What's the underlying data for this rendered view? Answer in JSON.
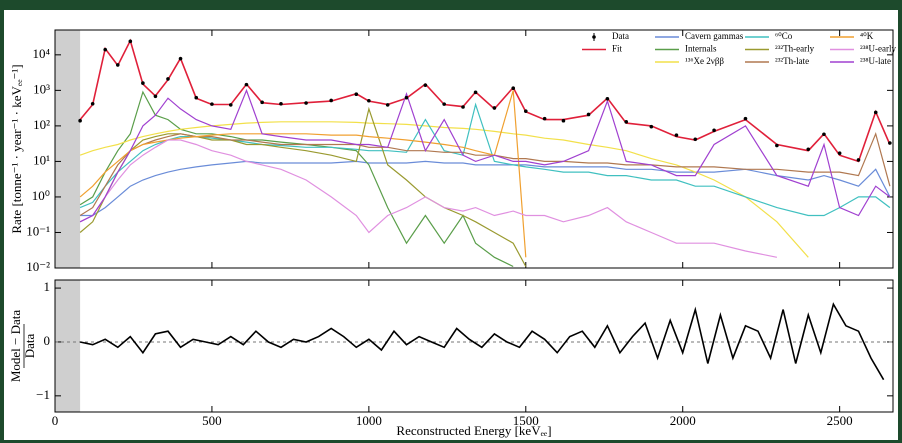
{
  "chart_data": [
    {
      "type": "line",
      "yscale": "log",
      "ylabel": "Rate [tonne⁻¹ · year⁻¹ · keVₑₑ⁻¹]",
      "xlim": [
        0,
        2670
      ],
      "ylim": [
        0.01,
        50000
      ],
      "excluded_region": [
        0,
        80
      ],
      "xticks": [
        0,
        500,
        1000,
        1500,
        2000,
        2500
      ],
      "yticks": [
        {
          "value": 0.01,
          "label": "10⁻²"
        },
        {
          "value": 0.1,
          "label": "10⁻¹"
        },
        {
          "value": 1,
          "label": "10⁰"
        },
        {
          "value": 10,
          "label": "10¹"
        },
        {
          "value": 100,
          "label": "10²"
        },
        {
          "value": 1000,
          "label": "10³"
        },
        {
          "value": 10000,
          "label": "10⁴"
        }
      ],
      "legend": "upper right",
      "x": [
        80,
        120,
        160,
        200,
        240,
        280,
        320,
        360,
        400,
        450,
        500,
        560,
        610,
        660,
        720,
        800,
        880,
        960,
        1000,
        1060,
        1120,
        1180,
        1240,
        1300,
        1340,
        1400,
        1460,
        1500,
        1560,
        1620,
        1700,
        1760,
        1820,
        1900,
        1980,
        2040,
        2100,
        2200,
        2300,
        2400,
        2450,
        2500,
        2560,
        2615,
        2660
      ],
      "series": [
        {
          "name": "Data",
          "color": "#000000",
          "values": [
            140,
            420,
            14000,
            5200,
            24000,
            1600,
            680,
            2100,
            7800,
            620,
            410,
            390,
            1450,
            460,
            420,
            440,
            520,
            780,
            510,
            390,
            620,
            1400,
            410,
            340,
            880,
            320,
            1150,
            260,
            160,
            140,
            210,
            580,
            130,
            95,
            55,
            42,
            75,
            160,
            28,
            22,
            58,
            17,
            11,
            240,
            33
          ]
        },
        {
          "name": "Fit",
          "color": "#e0203a",
          "values": [
            150,
            400,
            15000,
            5000,
            25000,
            1500,
            700,
            2000,
            8000,
            600,
            400,
            400,
            1500,
            450,
            400,
            450,
            500,
            800,
            500,
            400,
            600,
            1500,
            400,
            350,
            900,
            300,
            1200,
            250,
            150,
            150,
            200,
            600,
            120,
            100,
            50,
            40,
            70,
            150,
            30,
            20,
            60,
            15,
            10,
            250,
            30
          ]
        },
        {
          "name": "Cavern gammas",
          "color": "#6a8cd8",
          "values": [
            0.3,
            0.3,
            0.5,
            1,
            2,
            3,
            4,
            5,
            6,
            7,
            8,
            9,
            10,
            9,
            9,
            9,
            9,
            10,
            9,
            9,
            9,
            10,
            9,
            9,
            8,
            8,
            8,
            8,
            7,
            7,
            7,
            7,
            6,
            6,
            5,
            5,
            5,
            6,
            4,
            3,
            4,
            3,
            2,
            6,
            1
          ]
        },
        {
          "name": "Internals",
          "color": "#5a9e4a",
          "values": [
            0.6,
            1,
            5,
            20,
            60,
            900,
            200,
            150,
            80,
            60,
            60,
            50,
            40,
            40,
            35,
            30,
            25,
            20,
            8,
            0.5,
            0.05,
            0.3,
            0.05,
            0.3,
            0.05,
            0.02,
            0.011,
            null,
            null,
            null,
            null,
            null,
            null,
            null,
            null,
            null,
            null,
            null,
            null,
            null,
            null,
            null,
            null,
            null,
            null
          ]
        },
        {
          "name": "¹³⁶Xe 2νββ",
          "color": "#f2e04a",
          "values": [
            15,
            20,
            25,
            30,
            40,
            50,
            60,
            70,
            80,
            90,
            100,
            110,
            120,
            125,
            130,
            130,
            130,
            125,
            120,
            115,
            110,
            100,
            90,
            85,
            80,
            70,
            60,
            55,
            45,
            40,
            30,
            25,
            20,
            12,
            8,
            5,
            3,
            1,
            0.2,
            0.02,
            null,
            null,
            null,
            null,
            null
          ]
        },
        {
          "name": "⁶⁰Co",
          "color": "#40c0c0",
          "values": [
            0.5,
            0.7,
            2,
            5,
            10,
            20,
            30,
            40,
            50,
            50,
            45,
            40,
            35,
            30,
            28,
            25,
            25,
            22,
            20,
            20,
            18,
            150,
            20,
            15,
            400,
            10,
            8,
            7,
            6,
            5,
            5,
            4,
            4,
            3,
            3,
            2,
            2,
            1,
            0.5,
            0.3,
            0.3,
            0.5,
            1,
            1,
            0.5
          ]
        },
        {
          "name": "²³²Th-early",
          "color": "#9a9a30",
          "values": [
            0.1,
            0.2,
            1,
            5,
            20,
            40,
            50,
            60,
            60,
            50,
            40,
            40,
            30,
            30,
            25,
            20,
            15,
            10,
            300,
            8,
            3,
            1,
            0.5,
            0.3,
            0.2,
            0.1,
            0.05,
            0.011,
            null,
            null,
            null,
            null,
            null,
            null,
            null,
            null,
            null,
            null,
            null,
            null,
            null,
            null,
            null,
            null,
            null
          ]
        },
        {
          "name": "²³²Th-late",
          "color": "#b07850",
          "values": [
            0.3,
            0.5,
            2,
            8,
            20,
            30,
            40,
            50,
            60,
            50,
            50,
            40,
            40,
            35,
            30,
            30,
            30,
            30,
            25,
            25,
            20,
            20,
            18,
            18,
            15,
            15,
            12,
            12,
            10,
            10,
            9,
            9,
            8,
            8,
            7,
            7,
            7,
            6,
            6,
            5,
            5,
            5,
            4,
            60,
            2
          ]
        },
        {
          "name": "⁴⁰K",
          "color": "#f0a030",
          "values": [
            1,
            2,
            5,
            10,
            20,
            30,
            35,
            40,
            45,
            50,
            55,
            60,
            60,
            60,
            60,
            60,
            55,
            55,
            50,
            45,
            40,
            35,
            30,
            25,
            20,
            15,
            1000,
            0.02,
            null,
            null,
            null,
            null,
            null,
            null,
            null,
            null,
            null,
            null,
            null,
            null,
            null,
            null,
            null,
            null,
            null
          ]
        },
        {
          "name": "²³⁸U-early",
          "color": "#e090e0",
          "values": [
            0.2,
            0.3,
            1,
            3,
            8,
            15,
            25,
            40,
            40,
            30,
            20,
            15,
            10,
            8,
            6,
            3,
            1,
            0.3,
            0.1,
            0.3,
            0.5,
            1,
            0.5,
            0.4,
            0.5,
            0.3,
            0.4,
            0.3,
            0.3,
            0.2,
            0.3,
            0.5,
            0.2,
            0.1,
            0.05,
            0.05,
            0.05,
            0.03,
            0.02,
            null,
            null,
            null,
            null,
            null,
            null
          ]
        },
        {
          "name": "²³⁸U-late",
          "color": "#a040d0",
          "values": [
            0.2,
            0.3,
            1,
            5,
            20,
            100,
            200,
            600,
            300,
            150,
            100,
            80,
            1000,
            60,
            50,
            40,
            40,
            30,
            30,
            25,
            800,
            20,
            150,
            15,
            10,
            15,
            10,
            10,
            8,
            10,
            20,
            500,
            10,
            8,
            4,
            4,
            30,
            100,
            4,
            2,
            30,
            0.5,
            0.3,
            2,
            1
          ]
        }
      ]
    },
    {
      "type": "residual",
      "ylabel_numerator": "Model − Data",
      "ylabel_denominator": "Data",
      "xlabel": "Reconstructed Energy [keVₑₑ]",
      "xlim": [
        0,
        2670
      ],
      "ylim": [
        -1.3,
        1.15
      ],
      "excluded_region": [
        0,
        80
      ],
      "zero_line": true,
      "xticks": [
        0,
        500,
        1000,
        1500,
        2000,
        2500
      ],
      "yticks": [
        {
          "value": -1,
          "label": "−1"
        },
        0,
        1
      ],
      "x": [
        80,
        120,
        160,
        200,
        240,
        280,
        320,
        360,
        400,
        440,
        480,
        520,
        560,
        600,
        640,
        680,
        720,
        760,
        800,
        840,
        880,
        920,
        960,
        1000,
        1040,
        1080,
        1120,
        1160,
        1200,
        1240,
        1280,
        1320,
        1360,
        1400,
        1440,
        1480,
        1520,
        1560,
        1600,
        1640,
        1680,
        1720,
        1760,
        1800,
        1840,
        1880,
        1920,
        1960,
        2000,
        2040,
        2080,
        2120,
        2160,
        2200,
        2240,
        2280,
        2320,
        2360,
        2400,
        2440,
        2480,
        2520,
        2560,
        2600,
        2640
      ],
      "color": "#000000",
      "values": [
        0,
        -0.05,
        0.05,
        -0.1,
        0.1,
        -0.2,
        0.15,
        0.2,
        -0.1,
        0.05,
        0.0,
        -0.05,
        0.1,
        -0.05,
        0.2,
        0.0,
        -0.1,
        0.05,
        0.0,
        0.1,
        0.25,
        0.1,
        -0.1,
        0.05,
        -0.15,
        0.2,
        -0.05,
        0.1,
        0.0,
        -0.1,
        0.25,
        0.05,
        -0.1,
        0.15,
        0.0,
        -0.1,
        0.2,
        0.05,
        -0.2,
        0.1,
        0.2,
        -0.1,
        0.3,
        -0.2,
        0.1,
        0.35,
        -0.3,
        0.4,
        -0.2,
        0.6,
        -0.4,
        0.5,
        -0.3,
        0.3,
        0.2,
        -0.3,
        0.6,
        -0.4,
        0.5,
        -0.2,
        0.7,
        0.3,
        0.2,
        -0.3,
        -0.7
      ]
    }
  ]
}
